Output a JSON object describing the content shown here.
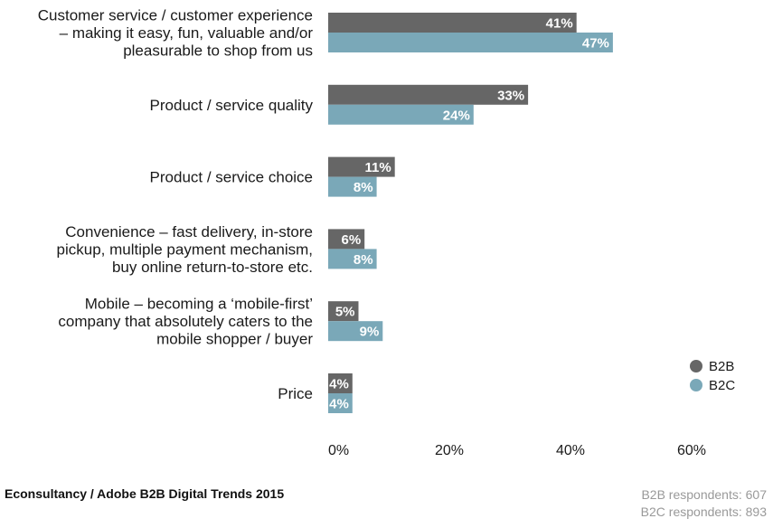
{
  "chart_data": {
    "type": "bar",
    "orientation": "horizontal",
    "categories": [
      [
        "Customer service / customer experience",
        "– making it easy, fun, valuable and/or",
        "pleasurable to shop from us"
      ],
      [
        "Product / service quality"
      ],
      [
        "Product / service choice"
      ],
      [
        "Convenience – fast delivery, in-store",
        "pickup, multiple payment mechanism,",
        "buy online return-to-store etc."
      ],
      [
        "Mobile – becoming a ‘mobile-first’",
        "company that absolutely caters to the",
        "mobile shopper / buyer"
      ],
      [
        "Price"
      ]
    ],
    "series": [
      {
        "name": "B2B",
        "color": "#666666",
        "values": [
          41,
          33,
          11,
          6,
          5,
          4
        ]
      },
      {
        "name": "B2C",
        "color": "#7aa8b8",
        "values": [
          47,
          24,
          8,
          8,
          9,
          4
        ]
      }
    ],
    "data_label_suffix": "%",
    "xlim": [
      0,
      60
    ],
    "xticks": [
      "0%",
      "20%",
      "40%",
      "60%"
    ],
    "grid": false,
    "legend_position": "right"
  },
  "footer": {
    "source": "Econsultancy / Adobe B2B Digital Trends 2015",
    "b2b_respondents": "B2B respondents: 607",
    "b2c_respondents": "B2C respondents: 893"
  }
}
